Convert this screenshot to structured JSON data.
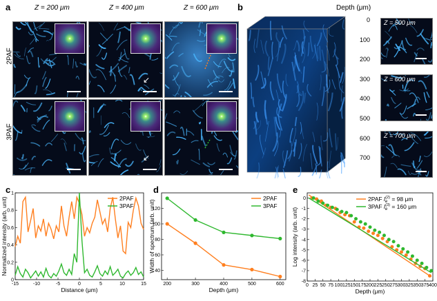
{
  "panel_a": {
    "label": "a",
    "columns": [
      "Z = 200 μm",
      "Z = 400 μm",
      "Z = 600 μm"
    ],
    "rows": [
      "2PAF",
      "3PAF"
    ]
  },
  "panel_b": {
    "label": "b",
    "depth_title": "Depth (μm)",
    "depth_ticks": [
      "0",
      "100",
      "200",
      "300",
      "400",
      "500",
      "600",
      "700"
    ],
    "slices": [
      "Z = 500 μm",
      "Z = 600 μm",
      "Z = 700 μm"
    ]
  },
  "colors": {
    "orange": "#ff7f1f",
    "green": "#2fb82f",
    "tile_bg": "#050b1a",
    "signal": "#49b7ff"
  },
  "chart_data": [
    {
      "label": "c",
      "type": "line",
      "xlabel": "Distance (μm)",
      "ylabel": "Normalized intensity (arb. unit)",
      "xlim": [
        -15,
        15
      ],
      "ylim": [
        0,
        1
      ],
      "xticks": [
        -15,
        -10,
        -5,
        0,
        5,
        10,
        15
      ],
      "yticks": [
        0,
        0.2,
        0.4,
        0.6,
        0.8,
        1
      ],
      "ytick_labels": [
        "0",
        "0.2",
        "0.4",
        "0.6",
        "0.8",
        "1"
      ],
      "legend": "top-right",
      "series": [
        {
          "name": "2PAF",
          "color": "#ff7f1f",
          "x": [
            -15,
            -14.4,
            -13.8,
            -13.2,
            -12.6,
            -12,
            -11.4,
            -10.8,
            -10.2,
            -9.6,
            -9,
            -8.4,
            -7.8,
            -7.2,
            -6.6,
            -6,
            -5.4,
            -4.8,
            -4.2,
            -3.6,
            -3,
            -2.4,
            -1.8,
            -1.2,
            -0.6,
            0,
            0.6,
            1.2,
            1.8,
            2.4,
            3,
            3.6,
            4.2,
            4.8,
            5.4,
            6,
            6.6,
            7.2,
            7.8,
            8.4,
            9,
            9.6,
            10.2,
            10.8,
            11.4,
            12,
            12.6,
            13.2,
            13.8,
            14.4,
            15
          ],
          "y": [
            0.38,
            0.5,
            0.42,
            0.9,
            0.95,
            0.55,
            0.68,
            0.82,
            0.48,
            0.62,
            0.56,
            0.7,
            0.5,
            0.65,
            0.58,
            0.47,
            0.62,
            0.55,
            0.85,
            0.62,
            0.5,
            0.72,
            0.9,
            0.7,
            0.95,
            0.88,
            0.75,
            0.5,
            0.6,
            0.54,
            0.65,
            0.72,
            0.92,
            0.78,
            0.64,
            0.7,
            0.55,
            0.82,
            0.95,
            0.7,
            0.48,
            0.62,
            0.33,
            0.3,
            0.66,
            0.6,
            0.8,
            0.94,
            0.85,
            0.65,
            0.58
          ]
        },
        {
          "name": "3PAF",
          "color": "#2fb82f",
          "x": [
            -15,
            -14.4,
            -13.8,
            -13.2,
            -12.6,
            -12,
            -11.4,
            -10.8,
            -10.2,
            -9.6,
            -9,
            -8.4,
            -7.8,
            -7.2,
            -6.6,
            -6,
            -5.4,
            -4.8,
            -4.2,
            -3.6,
            -3,
            -2.4,
            -1.8,
            -1.2,
            -0.6,
            0,
            0.6,
            1.2,
            1.8,
            2.4,
            3,
            3.6,
            4.2,
            4.8,
            5.4,
            6,
            6.6,
            7.2,
            7.8,
            8.4,
            9,
            9.6,
            10.2,
            10.8,
            11.4,
            12,
            12.6,
            13.2,
            13.8,
            14.4,
            15
          ],
          "y": [
            0.05,
            0.15,
            0.07,
            0.03,
            0.12,
            0.08,
            0.02,
            0.06,
            0.1,
            0.04,
            0.09,
            0.03,
            0.13,
            0.05,
            0.02,
            0.07,
            0.04,
            0.1,
            0.18,
            0.08,
            0.05,
            0.12,
            0.06,
            0.3,
            0.2,
            1.0,
            0.45,
            0.08,
            0.12,
            0.05,
            0.03,
            0.09,
            0.16,
            0.07,
            0.04,
            0.1,
            0.06,
            0.15,
            0.05,
            0.08,
            0.12,
            0.04,
            0.02,
            0.07,
            0.1,
            0.05,
            0.08,
            0.14,
            0.06,
            0.09,
            0.03
          ]
        }
      ]
    },
    {
      "label": "d",
      "type": "line",
      "xlabel": "Depth (μm)",
      "ylabel": "Width of spectrum (arb. unit)",
      "xlim": [
        180,
        620
      ],
      "ylim": [
        28,
        140
      ],
      "xticks": [
        200,
        300,
        400,
        500,
        600
      ],
      "yticks": [
        40,
        60,
        80,
        100,
        120
      ],
      "legend": "top-right",
      "series": [
        {
          "name": "2PAF",
          "color": "#ff7f1f",
          "x": [
            200,
            300,
            400,
            500,
            600
          ],
          "y": [
            100,
            75,
            47,
            41,
            32
          ]
        },
        {
          "name": "3PAF",
          "color": "#2fb82f",
          "x": [
            200,
            300,
            400,
            500,
            600
          ],
          "y": [
            133,
            105,
            89,
            85,
            81
          ]
        }
      ]
    },
    {
      "label": "e",
      "type": "scatter",
      "xlabel": "Depth (μm)",
      "ylabel": "Log intensity (arb. unit)",
      "xlim": [
        0,
        400
      ],
      "ylim": [
        -8,
        0.5
      ],
      "xticks": [
        0,
        25,
        50,
        75,
        100,
        125,
        150,
        175,
        200,
        225,
        250,
        275,
        300,
        325,
        350,
        375,
        400
      ],
      "yticks": [
        0,
        -1,
        -2,
        -3,
        -4,
        -5,
        -6,
        -7,
        -8
      ],
      "legend": "top-right",
      "series": [
        {
          "name": "2PAF",
          "legend_prefix": "2PAF ",
          "legend_symbol": "l",
          "legend_sub": "e",
          "legend_sup": "(2)",
          "legend_value": " = 98 μm",
          "color": "#ff7f1f",
          "x": [
            15,
            30,
            45,
            60,
            75,
            90,
            105,
            120,
            135,
            150,
            165,
            180,
            195,
            210,
            225,
            240,
            255,
            270,
            285,
            300,
            315,
            330,
            345,
            360,
            375,
            390
          ],
          "y": [
            0.0,
            -0.1,
            -0.3,
            -0.7,
            -0.9,
            -1.0,
            -1.4,
            -1.6,
            -1.7,
            -2.3,
            -2.8,
            -2.9,
            -3.2,
            -3.4,
            -3.6,
            -3.9,
            -4.2,
            -4.7,
            -5.0,
            -5.2,
            -5.5,
            -5.9,
            -6.3,
            -6.6,
            -6.8,
            -7.5
          ],
          "fit": {
            "x": [
              5,
              395
            ],
            "y": [
              0.3,
              -7.6
            ]
          }
        },
        {
          "name": "3PAF",
          "legend_prefix": "3PAF ",
          "legend_symbol": "l",
          "legend_sub": "e",
          "legend_sup": "(3)",
          "legend_value": " = 160 μm",
          "color": "#2fb82f",
          "x": [
            20,
            35,
            50,
            65,
            80,
            95,
            110,
            125,
            140,
            155,
            170,
            185,
            200,
            215,
            230,
            245,
            260,
            275,
            290,
            305,
            320,
            335,
            350,
            365,
            380,
            395
          ],
          "y": [
            0.0,
            -0.3,
            -0.5,
            -0.7,
            -0.9,
            -1.1,
            -1.3,
            -1.4,
            -1.7,
            -2.0,
            -2.3,
            -2.5,
            -2.8,
            -3.1,
            -3.3,
            -3.6,
            -4.0,
            -4.2,
            -4.6,
            -4.9,
            -5.2,
            -5.6,
            -6.0,
            -6.3,
            -6.7,
            -7.0
          ],
          "fit": {
            "x": [
              5,
              395
            ],
            "y": [
              0.0,
              -7.2
            ]
          }
        }
      ]
    }
  ]
}
